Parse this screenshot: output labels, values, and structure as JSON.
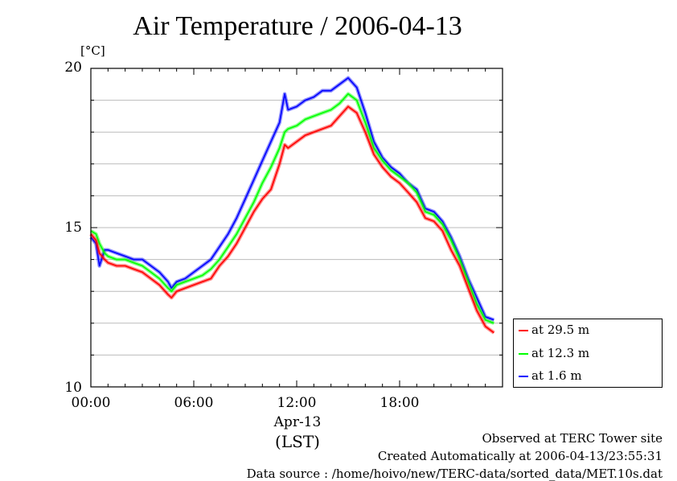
{
  "chart_data": {
    "type": "line",
    "title": "Air Temperature / 2006-04-13",
    "ylabel": "[°C]",
    "xlabel": "(LST)",
    "date_label": "Apr-13",
    "xlim": [
      0,
      24
    ],
    "ylim": [
      10,
      20
    ],
    "yticks": [
      {
        "value": 10,
        "label": "10"
      },
      {
        "value": 15,
        "label": "15"
      },
      {
        "value": 20,
        "label": "20"
      }
    ],
    "xticks": [
      {
        "value": 0,
        "label": "00:00"
      },
      {
        "value": 6,
        "label": "06:00"
      },
      {
        "value": 12,
        "label": "12:00"
      },
      {
        "value": 18,
        "label": "18:00"
      }
    ],
    "grid": true,
    "legend_position": "bottom-right, outside plot",
    "x_hours": [
      0,
      0.3,
      0.5,
      0.8,
      1.0,
      1.5,
      2.0,
      2.5,
      3.0,
      3.5,
      4.0,
      4.5,
      4.7,
      5.0,
      5.5,
      6.0,
      6.5,
      7.0,
      7.5,
      8.0,
      8.5,
      9.0,
      9.5,
      10.0,
      10.5,
      11.0,
      11.3,
      11.5,
      12.0,
      12.5,
      13.0,
      13.5,
      14.0,
      14.5,
      15.0,
      15.5,
      16.0,
      16.5,
      17.0,
      17.5,
      18.0,
      18.5,
      19.0,
      19.5,
      20.0,
      20.5,
      21.0,
      21.5,
      22.0,
      22.5,
      23.0,
      23.5
    ],
    "series": [
      {
        "name": "at 29.5 m",
        "color": "#ff0000",
        "values": [
          14.8,
          14.6,
          14.2,
          14.0,
          13.9,
          13.8,
          13.8,
          13.7,
          13.6,
          13.4,
          13.2,
          12.9,
          12.8,
          13.0,
          13.1,
          13.2,
          13.3,
          13.4,
          13.8,
          14.1,
          14.5,
          15.0,
          15.5,
          15.9,
          16.2,
          17.0,
          17.6,
          17.5,
          17.7,
          17.9,
          18.0,
          18.1,
          18.2,
          18.5,
          18.8,
          18.6,
          18.0,
          17.3,
          16.9,
          16.6,
          16.4,
          16.1,
          15.8,
          15.3,
          15.2,
          14.9,
          14.3,
          13.8,
          13.1,
          12.4,
          11.9,
          11.7
        ]
      },
      {
        "name": "at 12.3 m",
        "color": "#00ff00",
        "values": [
          14.9,
          14.8,
          14.5,
          14.2,
          14.1,
          14.0,
          14.0,
          13.9,
          13.8,
          13.6,
          13.4,
          13.1,
          13.0,
          13.2,
          13.3,
          13.4,
          13.5,
          13.7,
          14.0,
          14.4,
          14.8,
          15.3,
          15.8,
          16.4,
          16.9,
          17.5,
          18.0,
          18.1,
          18.2,
          18.4,
          18.5,
          18.6,
          18.7,
          18.9,
          19.2,
          19.0,
          18.3,
          17.5,
          17.1,
          16.8,
          16.6,
          16.4,
          16.1,
          15.5,
          15.4,
          15.1,
          14.6,
          14.0,
          13.3,
          12.6,
          12.1,
          12.0
        ]
      },
      {
        "name": "at 1.6 m",
        "color": "#0000ff",
        "values": [
          14.7,
          14.5,
          13.8,
          14.3,
          14.3,
          14.2,
          14.1,
          14.0,
          14.0,
          13.8,
          13.6,
          13.3,
          13.1,
          13.3,
          13.4,
          13.6,
          13.8,
          14.0,
          14.4,
          14.8,
          15.3,
          15.9,
          16.5,
          17.1,
          17.7,
          18.3,
          19.2,
          18.7,
          18.8,
          19.0,
          19.1,
          19.3,
          19.3,
          19.5,
          19.7,
          19.4,
          18.6,
          17.7,
          17.2,
          16.9,
          16.7,
          16.4,
          16.2,
          15.6,
          15.5,
          15.2,
          14.7,
          14.1,
          13.4,
          12.8,
          12.2,
          12.1
        ]
      }
    ]
  },
  "footer": {
    "line1": "Observed at TERC Tower site",
    "line2": "Created Automatically at 2006-04-13/23:55:31",
    "line3": "Data source : /home/hoivo/new/TERC-data/sorted_data/MET.10s.dat"
  }
}
